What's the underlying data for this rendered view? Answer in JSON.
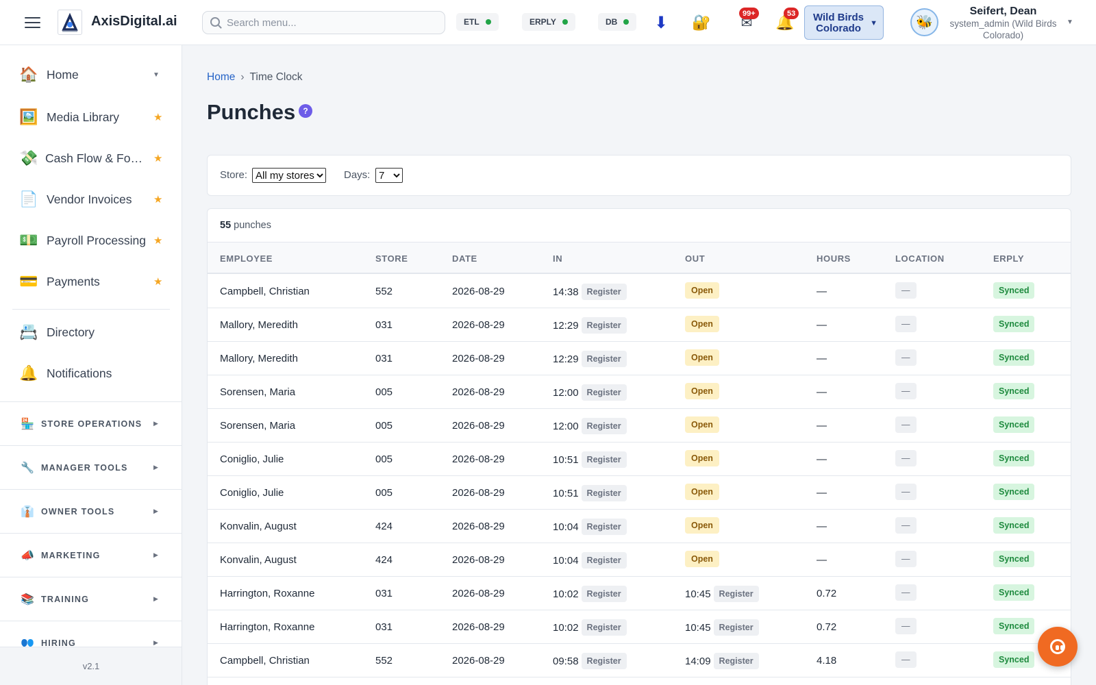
{
  "header": {
    "app_name": "AxisDigital.ai",
    "search_placeholder": "Search menu...",
    "status": [
      {
        "label": "ETL",
        "state": "ok"
      },
      {
        "label": "ERPLY",
        "state": "ok"
      },
      {
        "label": "DB",
        "state": "ok"
      }
    ],
    "mail_badge": "99+",
    "bell_badge": "53",
    "store_switcher": {
      "line1": "Wild Birds",
      "line2": "Colorado"
    },
    "user": {
      "name": "Seifert, Dean",
      "role": "system_admin (Wild Birds Colorado)"
    }
  },
  "sidebar": {
    "items": [
      {
        "label": "Home",
        "icon": "🏠",
        "marker": "caret"
      },
      {
        "label": "Media Library",
        "icon": "🖼️",
        "marker": "star"
      },
      {
        "label": "Cash Flow & Forecasting",
        "icon": "💸",
        "marker": "star"
      },
      {
        "label": "Vendor Invoices",
        "icon": "📄",
        "marker": "star"
      },
      {
        "label": "Payroll Processing",
        "icon": "💵",
        "marker": "star"
      },
      {
        "label": "Payments",
        "icon": "💳",
        "marker": "star"
      },
      {
        "label": "Directory",
        "icon": "📇",
        "marker": ""
      },
      {
        "label": "Notifications",
        "icon": "🔔",
        "marker": ""
      }
    ],
    "sections": [
      {
        "label": "STORE OPERATIONS",
        "icon": "🏪"
      },
      {
        "label": "MANAGER TOOLS",
        "icon": "🔧"
      },
      {
        "label": "OWNER TOOLS",
        "icon": "👔"
      },
      {
        "label": "MARKETING",
        "icon": "📣"
      },
      {
        "label": "TRAINING",
        "icon": "📚"
      },
      {
        "label": "HIRING",
        "icon": "👥"
      }
    ],
    "version": "v2.1"
  },
  "breadcrumb": {
    "home": "Home",
    "separator": "›",
    "current": "Time Clock"
  },
  "page": {
    "title": "Punches",
    "help": "?"
  },
  "filters": {
    "store_label": "Store:",
    "store_value": "All my stores",
    "days_label": "Days:",
    "days_value": "7"
  },
  "summary": {
    "count": "55",
    "suffix": "punches"
  },
  "table": {
    "columns": [
      "EMPLOYEE",
      "STORE",
      "DATE",
      "IN",
      "OUT",
      "HOURS",
      "LOCATION",
      "ERPLY"
    ],
    "rows": [
      {
        "employee": "Campbell, Christian",
        "store": "552",
        "date": "2026-08-29",
        "in_time": "14:38",
        "in_src": "Register",
        "out_time": "",
        "out_src": "",
        "out_status": "Open",
        "hours": "—",
        "location": "—",
        "erply": "Synced"
      },
      {
        "employee": "Mallory, Meredith",
        "store": "031",
        "date": "2026-08-29",
        "in_time": "12:29",
        "in_src": "Register",
        "out_time": "",
        "out_src": "",
        "out_status": "Open",
        "hours": "—",
        "location": "—",
        "erply": "Synced"
      },
      {
        "employee": "Mallory, Meredith",
        "store": "031",
        "date": "2026-08-29",
        "in_time": "12:29",
        "in_src": "Register",
        "out_time": "",
        "out_src": "",
        "out_status": "Open",
        "hours": "—",
        "location": "—",
        "erply": "Synced"
      },
      {
        "employee": "Sorensen, Maria",
        "store": "005",
        "date": "2026-08-29",
        "in_time": "12:00",
        "in_src": "Register",
        "out_time": "",
        "out_src": "",
        "out_status": "Open",
        "hours": "—",
        "location": "—",
        "erply": "Synced"
      },
      {
        "employee": "Sorensen, Maria",
        "store": "005",
        "date": "2026-08-29",
        "in_time": "12:00",
        "in_src": "Register",
        "out_time": "",
        "out_src": "",
        "out_status": "Open",
        "hours": "—",
        "location": "—",
        "erply": "Synced"
      },
      {
        "employee": "Coniglio, Julie",
        "store": "005",
        "date": "2026-08-29",
        "in_time": "10:51",
        "in_src": "Register",
        "out_time": "",
        "out_src": "",
        "out_status": "Open",
        "hours": "—",
        "location": "—",
        "erply": "Synced"
      },
      {
        "employee": "Coniglio, Julie",
        "store": "005",
        "date": "2026-08-29",
        "in_time": "10:51",
        "in_src": "Register",
        "out_time": "",
        "out_src": "",
        "out_status": "Open",
        "hours": "—",
        "location": "—",
        "erply": "Synced"
      },
      {
        "employee": "Konvalin, August",
        "store": "424",
        "date": "2026-08-29",
        "in_time": "10:04",
        "in_src": "Register",
        "out_time": "",
        "out_src": "",
        "out_status": "Open",
        "hours": "—",
        "location": "—",
        "erply": "Synced"
      },
      {
        "employee": "Konvalin, August",
        "store": "424",
        "date": "2026-08-29",
        "in_time": "10:04",
        "in_src": "Register",
        "out_time": "",
        "out_src": "",
        "out_status": "Open",
        "hours": "—",
        "location": "—",
        "erply": "Synced"
      },
      {
        "employee": "Harrington, Roxanne",
        "store": "031",
        "date": "2026-08-29",
        "in_time": "10:02",
        "in_src": "Register",
        "out_time": "10:45",
        "out_src": "Register",
        "out_status": "",
        "hours": "0.72",
        "location": "—",
        "erply": "Synced"
      },
      {
        "employee": "Harrington, Roxanne",
        "store": "031",
        "date": "2026-08-29",
        "in_time": "10:02",
        "in_src": "Register",
        "out_time": "10:45",
        "out_src": "Register",
        "out_status": "",
        "hours": "0.72",
        "location": "—",
        "erply": "Synced"
      },
      {
        "employee": "Campbell, Christian",
        "store": "552",
        "date": "2026-08-29",
        "in_time": "09:58",
        "in_src": "Register",
        "out_time": "14:09",
        "out_src": "Register",
        "out_status": "",
        "hours": "4.18",
        "location": "—",
        "erply": "Synced"
      }
    ]
  },
  "colors": {
    "accent": "#2563c7",
    "open_bg": "#fdf0c4",
    "synced_bg": "#d7f5df",
    "fab": "#f06a22",
    "status_ok": "#22a447"
  }
}
